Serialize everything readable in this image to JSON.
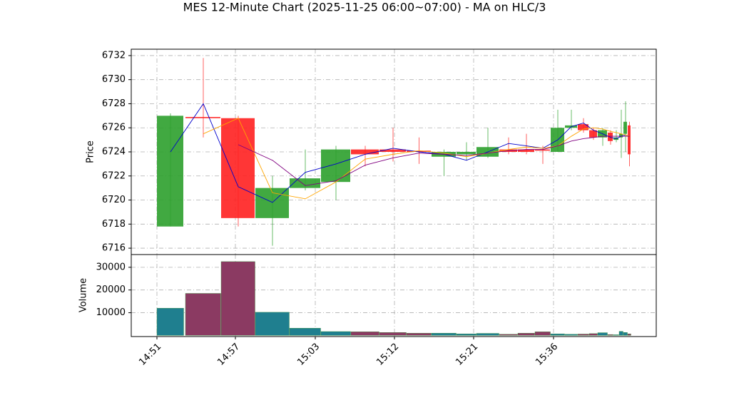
{
  "chart_data": [
    {
      "type": "candlestick",
      "title": "MES 12-Minute Chart (2025-11-25 06:00~07:00) - MA on HLC/3",
      "ylabel": "Price",
      "xlim": [
        -36,
        700
      ],
      "ylim": [
        6715.47,
        6732.53
      ],
      "yticks": [
        6716,
        6718,
        6720,
        6722,
        6724,
        6726,
        6728,
        6730,
        6732
      ],
      "grid": true,
      "up_color": "#2ca02c",
      "down_color": "#ff2020",
      "x0": [
        0,
        40,
        90,
        138,
        186,
        230,
        272,
        312,
        350,
        385,
        420,
        448,
        480,
        506,
        530,
        552,
        572,
        590,
        606,
        618,
        632,
        640,
        648,
        654,
        660
      ],
      "x1": [
        38,
        90,
        138,
        186,
        230,
        272,
        312,
        350,
        385,
        420,
        448,
        480,
        506,
        530,
        552,
        572,
        590,
        606,
        618,
        632,
        640,
        648,
        654,
        660,
        665
      ],
      "open": [
        6717.8,
        6726.9,
        6726.8,
        6718.5,
        6721.0,
        6721.5,
        6724.2,
        6724.2,
        6724.1,
        6723.6,
        6723.8,
        6723.6,
        6724.2,
        6724.2,
        6724.2,
        6724.0,
        6726.0,
        6726.3,
        6725.8,
        6725.2,
        6725.6,
        6725.0,
        6725.2,
        6725.5,
        6726.2
      ],
      "high": [
        6727.2,
        6731.8,
        6727.0,
        6722.0,
        6724.2,
        6724.5,
        6724.5,
        6726.0,
        6725.2,
        6724.2,
        6724.8,
        6726.0,
        6725.2,
        6725.5,
        6724.5,
        6727.5,
        6727.5,
        6726.8,
        6726.0,
        6726.0,
        6725.8,
        6725.8,
        6727.5,
        6728.2,
        6726.5
      ],
      "low": [
        6717.8,
        6725.2,
        6717.8,
        6716.2,
        6720.8,
        6720.0,
        6722.8,
        6723.2,
        6723.0,
        6722.0,
        6723.3,
        6723.5,
        6723.8,
        6723.8,
        6723.0,
        6724.0,
        6725.8,
        6725.6,
        6725.0,
        6724.5,
        6724.6,
        6724.8,
        6723.5,
        6724.0,
        6722.8
      ],
      "close": [
        6727.0,
        6726.8,
        6718.5,
        6721.0,
        6721.8,
        6724.2,
        6723.8,
        6724.0,
        6724.0,
        6724.0,
        6724.0,
        6724.4,
        6724.0,
        6724.0,
        6724.1,
        6726.0,
        6726.2,
        6725.8,
        6725.2,
        6725.8,
        6724.9,
        6725.2,
        6725.5,
        6726.5,
        6723.8
      ],
      "series": [
        {
          "color": "#0000cc",
          "values": [
            6724,
            6728,
            6721.1,
            6719.8,
            6722.3,
            6723,
            6723.8,
            6724.3,
            6724,
            6723.8,
            6723.3,
            6724,
            6724.7,
            6724.5,
            6724.3,
            6725,
            6726.1,
            6726.4,
            6725.8,
            6725.5,
            6725.2,
            6725.1,
            6725.3,
            6725.4,
            6725.3
          ]
        },
        {
          "color": "#ffa500",
          "values": [
            null,
            6725.5,
            6726.8,
            6720.6,
            6720.1,
            6721.5,
            6723.4,
            6723.8,
            6724.1,
            6723.9,
            6723.6,
            6723.9,
            6724.2,
            6724.4,
            6724.3,
            6724.5,
            6725.3,
            6725.9,
            6726,
            6725.9,
            6725.7,
            6725.6,
            6725.5,
            6725.4,
            6725.3
          ]
        },
        {
          "color": "#800080",
          "values": [
            null,
            null,
            6724.6,
            6723.3,
            6721.2,
            6721.6,
            6722.9,
            6723.5,
            6723.9,
            6723.8,
            6723.7,
            6723.9,
            6724.1,
            6724.2,
            6724.2,
            6724.5,
            6724.9,
            6725.1,
            6725.2,
            6725.3,
            6725.3,
            6725.3,
            6725.3,
            6725.3,
            6725.3
          ]
        }
      ]
    },
    {
      "type": "bar",
      "ylabel": "Volume",
      "ylim": [
        -500,
        35600
      ],
      "yticks": [
        10000,
        20000,
        30000
      ],
      "grid": true,
      "up_color": "#1f7f8f",
      "down_color": "#8b3a62",
      "xticks": [
        {
          "value": 0,
          "label": "14:51"
        },
        {
          "value": 110,
          "label": "14:57"
        },
        {
          "value": 222,
          "label": "15:03"
        },
        {
          "value": 333,
          "label": "15:12"
        },
        {
          "value": 444,
          "label": "15:21"
        },
        {
          "value": 556,
          "label": "15:36"
        }
      ],
      "values": [
        12000,
        18500,
        32500,
        10200,
        3200,
        1700,
        1600,
        1300,
        1000,
        1000,
        700,
        900,
        500,
        1000,
        1600,
        700,
        500,
        600,
        800,
        1200,
        400,
        300,
        1800,
        1300,
        700
      ]
    }
  ]
}
